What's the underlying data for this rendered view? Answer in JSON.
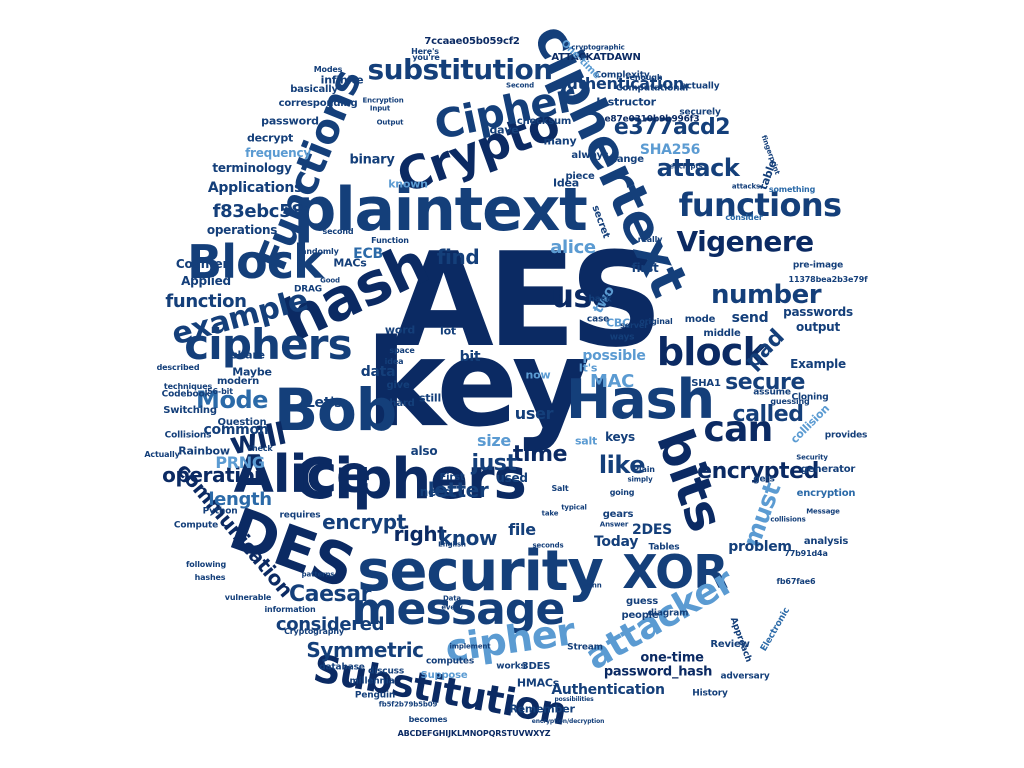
{
  "colors": {
    "navy": "#0b2a63",
    "dark": "#143f7a",
    "mid": "#2b6aa8",
    "light": "#5b9bd2",
    "pale": "#9cc3e6"
  },
  "words": [
    {
      "text": "AES",
      "size": 130
    },
    {
      "text": "key",
      "size": 120
    },
    {
      "text": "Ciphers",
      "size": 56
    },
    {
      "text": "security",
      "size": 56
    },
    {
      "text": "plaintext",
      "size": 60
    },
    {
      "text": "ciphertext",
      "size": 52
    },
    {
      "text": "hash",
      "size": 58
    },
    {
      "text": "Bob",
      "size": 58
    },
    {
      "text": "Alice",
      "size": 52
    },
    {
      "text": "DES",
      "size": 58
    },
    {
      "text": "Hash",
      "size": 54
    },
    {
      "text": "bits",
      "size": 50
    },
    {
      "text": "message",
      "size": 44
    },
    {
      "text": "Crypto",
      "size": 46
    },
    {
      "text": "Block",
      "size": 46
    },
    {
      "text": "Functions",
      "size": 40
    },
    {
      "text": "ciphers",
      "size": 42
    },
    {
      "text": "Cipher",
      "size": 40
    },
    {
      "text": "XOR",
      "size": 46
    },
    {
      "text": "Substitution",
      "size": 38
    },
    {
      "text": "cipher",
      "size": 38
    },
    {
      "text": "attacker",
      "size": 36
    },
    {
      "text": "block",
      "size": 38
    },
    {
      "text": "can",
      "size": 36
    },
    {
      "text": "functions",
      "size": 32
    },
    {
      "text": "use",
      "size": 32
    },
    {
      "text": "example",
      "size": 30
    },
    {
      "text": "Vigenere",
      "size": 28
    },
    {
      "text": "substitution",
      "size": 28
    },
    {
      "text": "number",
      "size": 26
    },
    {
      "text": "will",
      "size": 30
    },
    {
      "text": "secure",
      "size": 22
    },
    {
      "text": "e377acd2",
      "size": 22
    },
    {
      "text": "attack",
      "size": 24
    },
    {
      "text": "Mode",
      "size": 24
    },
    {
      "text": "called",
      "size": 22
    },
    {
      "text": "like",
      "size": 24
    },
    {
      "text": "communication",
      "size": 20
    },
    {
      "text": "encrypted",
      "size": 22
    },
    {
      "text": "Caesar",
      "size": 22
    },
    {
      "text": "operation",
      "size": 20
    },
    {
      "text": "Symmetric",
      "size": 20
    },
    {
      "text": "considered",
      "size": 18
    },
    {
      "text": "must",
      "size": 24
    },
    {
      "text": "pad",
      "size": 22
    },
    {
      "text": "time",
      "size": 22
    },
    {
      "text": "just",
      "size": 22
    },
    {
      "text": "right",
      "size": 20
    },
    {
      "text": "know",
      "size": 20
    },
    {
      "text": "letter",
      "size": 20
    },
    {
      "text": "encrypt",
      "size": 20
    },
    {
      "text": "length",
      "size": 18
    },
    {
      "text": "function",
      "size": 18
    },
    {
      "text": "f83ebc58",
      "size": 18
    },
    {
      "text": "alice",
      "size": 18
    },
    {
      "text": "find",
      "size": 20
    },
    {
      "text": "MAC",
      "size": 18
    },
    {
      "text": "PRNG",
      "size": 16
    },
    {
      "text": "authentication",
      "size": 16
    },
    {
      "text": "Authentication",
      "size": 14
    },
    {
      "text": "one-time",
      "size": 13
    },
    {
      "text": "password_hash",
      "size": 13
    },
    {
      "text": "Applications",
      "size": 14
    },
    {
      "text": "SHA256",
      "size": 14
    },
    {
      "text": "user",
      "size": 16
    },
    {
      "text": "2DES",
      "size": 14
    },
    {
      "text": "Today",
      "size": 14
    },
    {
      "text": "problem",
      "size": 14
    },
    {
      "text": "possible",
      "size": 14
    },
    {
      "text": "common",
      "size": 14
    },
    {
      "text": "file",
      "size": 16
    },
    {
      "text": "size",
      "size": 16
    },
    {
      "text": "data",
      "size": 14
    },
    {
      "text": "send",
      "size": 14
    },
    {
      "text": "Let's",
      "size": 14
    },
    {
      "text": "ECB",
      "size": 14
    },
    {
      "text": "bit",
      "size": 14
    },
    {
      "text": "binary",
      "size": 13
    },
    {
      "text": "passwords",
      "size": 12
    },
    {
      "text": "Example",
      "size": 12
    },
    {
      "text": "output",
      "size": 12
    },
    {
      "text": "operations",
      "size": 12
    },
    {
      "text": "Counter",
      "size": 12
    },
    {
      "text": "Applied",
      "size": 12
    },
    {
      "text": "terminology",
      "size": 12
    },
    {
      "text": "frequency",
      "size": 12
    },
    {
      "text": "decrypt",
      "size": 11
    },
    {
      "text": "password",
      "size": 11
    },
    {
      "text": "corresponding",
      "size": 10
    },
    {
      "text": "basically",
      "size": 10
    },
    {
      "text": "Instructor",
      "size": 11
    },
    {
      "text": "dave",
      "size": 11
    },
    {
      "text": "checksum",
      "size": 10
    },
    {
      "text": "many",
      "size": 11
    },
    {
      "text": "Idea",
      "size": 11
    },
    {
      "text": "known",
      "size": 11
    },
    {
      "text": "ATTACKATDAWN",
      "size": 10
    },
    {
      "text": "7ccaae05b059cf2",
      "size": 10
    },
    {
      "text": "Complexity",
      "size": 9
    },
    {
      "text": "Computational",
      "size": 9
    },
    {
      "text": "e87e0310b9b996f3",
      "size": 9
    },
    {
      "text": "Modes",
      "size": 8
    },
    {
      "text": "infinite",
      "size": 11
    },
    {
      "text": "share",
      "size": 11
    },
    {
      "text": "Maybe",
      "size": 11
    },
    {
      "text": "modern",
      "size": 10
    },
    {
      "text": "MACs",
      "size": 11
    },
    {
      "text": "DRAG",
      "size": 9
    },
    {
      "text": "Question",
      "size": 10
    },
    {
      "text": "Rainbow",
      "size": 11
    },
    {
      "text": "Collisions",
      "size": 9
    },
    {
      "text": "Switching",
      "size": 10
    },
    {
      "text": "Codebook",
      "size": 9
    },
    {
      "text": "techniques",
      "size": 8
    },
    {
      "text": "Python",
      "size": 9
    },
    {
      "text": "Compute",
      "size": 9
    },
    {
      "text": "Actually",
      "size": 8
    },
    {
      "text": "requires",
      "size": 9
    },
    {
      "text": "following",
      "size": 8
    },
    {
      "text": "hashes",
      "size": 8
    },
    {
      "text": "information",
      "size": 8
    },
    {
      "text": "vulnerable",
      "size": 8
    },
    {
      "text": "Cryptography",
      "size": 8
    },
    {
      "text": "database",
      "size": 9
    },
    {
      "text": "discuss",
      "size": 9
    },
    {
      "text": "millennia",
      "size": 9
    },
    {
      "text": "Penguin",
      "size": 9
    },
    {
      "text": "becomes",
      "size": 8
    },
    {
      "text": "ABCDEFGHIJKLMNOPQRSTUVWXYZ",
      "size": 8
    },
    {
      "text": "fb5f2b79b5b09",
      "size": 7
    },
    {
      "text": "Suppose",
      "size": 10
    },
    {
      "text": "Remember",
      "size": 11
    },
    {
      "text": "HMACs",
      "size": 11
    },
    {
      "text": "computes",
      "size": 9
    },
    {
      "text": "works",
      "size": 9
    },
    {
      "text": "3DES",
      "size": 10
    },
    {
      "text": "Stream",
      "size": 9
    },
    {
      "text": "History",
      "size": 9
    },
    {
      "text": "adversary",
      "size": 9
    },
    {
      "text": "people",
      "size": 10
    },
    {
      "text": "guess",
      "size": 10
    },
    {
      "text": "diagram",
      "size": 9
    },
    {
      "text": "Approach",
      "size": 9
    },
    {
      "text": "Electronic",
      "size": 9
    },
    {
      "text": "analysis",
      "size": 10
    },
    {
      "text": "encryption",
      "size": 10
    },
    {
      "text": "generator",
      "size": 10
    },
    {
      "text": "provides",
      "size": 9
    },
    {
      "text": "collision",
      "size": 11
    },
    {
      "text": "Cloning",
      "size": 9
    },
    {
      "text": "SHA1",
      "size": 10
    },
    {
      "text": "middle",
      "size": 10
    },
    {
      "text": "mode",
      "size": 10
    },
    {
      "text": "pre-image",
      "size": 9
    },
    {
      "text": "11378bea2b3e79f",
      "size": 8
    },
    {
      "text": "77b91d4a",
      "size": 8
    },
    {
      "text": "fb67fae6",
      "size": 8
    },
    {
      "text": "keys",
      "size": 12
    },
    {
      "text": "salt",
      "size": 11
    },
    {
      "text": "gears",
      "size": 10
    },
    {
      "text": "Tables",
      "size": 9
    },
    {
      "text": "used",
      "size": 12
    },
    {
      "text": "need",
      "size": 12
    },
    {
      "text": "first",
      "size": 12
    },
    {
      "text": "First",
      "size": 10
    },
    {
      "text": "also",
      "size": 12
    },
    {
      "text": "now",
      "size": 11
    },
    {
      "text": "It's",
      "size": 11
    },
    {
      "text": "table",
      "size": 11
    },
    {
      "text": "two",
      "size": 14
    },
    {
      "text": "CBC",
      "size": 11
    },
    {
      "text": "lot",
      "size": 11
    },
    {
      "text": "still",
      "size": 11
    },
    {
      "text": "give",
      "size": 10
    },
    {
      "text": "hard",
      "size": 10
    },
    {
      "text": "word",
      "size": 11
    },
    {
      "text": "Review",
      "size": 10
    },
    {
      "text": "secret",
      "size": 10
    },
    {
      "text": "One-time",
      "size": 10
    },
    {
      "text": "always",
      "size": 10
    },
    {
      "text": "change",
      "size": 10
    },
    {
      "text": "piece",
      "size": 10
    },
    {
      "text": "actually",
      "size": 9
    },
    {
      "text": "securely",
      "size": 9
    },
    {
      "text": "enough",
      "size": 8
    },
    {
      "text": "Here's",
      "size": 8
    },
    {
      "text": "you're",
      "size": 8
    },
    {
      "text": "Encryption",
      "size": 7
    },
    {
      "text": "Second",
      "size": 7
    },
    {
      "text": "cryptographic",
      "size": 7
    },
    {
      "text": "fingerprint",
      "size": 7
    },
    {
      "text": "encrypts",
      "size": 7
    },
    {
      "text": "attacks",
      "size": 7
    },
    {
      "text": "something",
      "size": 8
    },
    {
      "text": "consider",
      "size": 8
    },
    {
      "text": "really",
      "size": 8
    },
    {
      "text": "Function",
      "size": 8
    },
    {
      "text": "second",
      "size": 8
    },
    {
      "text": "randomly",
      "size": 8
    },
    {
      "text": "Good",
      "size": 7
    },
    {
      "text": "Output",
      "size": 7
    },
    {
      "text": "Input",
      "size": 7
    },
    {
      "text": "ways",
      "size": 9
    },
    {
      "text": "server",
      "size": 8
    },
    {
      "text": "case",
      "size": 9
    },
    {
      "text": "back",
      "size": 9
    },
    {
      "text": "original",
      "size": 8
    },
    {
      "text": "space",
      "size": 8
    },
    {
      "text": "idea",
      "size": 8
    },
    {
      "text": "Salt",
      "size": 8
    },
    {
      "text": "Plain",
      "size": 8
    },
    {
      "text": "going",
      "size": 8
    },
    {
      "text": "gets",
      "size": 9
    },
    {
      "text": "assume",
      "size": 9
    },
    {
      "text": "guessing",
      "size": 8
    },
    {
      "text": "check",
      "size": 8
    },
    {
      "text": "described",
      "size": 8
    },
    {
      "text": "56-bit",
      "size": 8
    },
    {
      "text": "English",
      "size": 7
    },
    {
      "text": "typical",
      "size": 7
    },
    {
      "text": "Data",
      "size": 7
    },
    {
      "text": "every",
      "size": 7
    },
    {
      "text": "Venn",
      "size": 7
    },
    {
      "text": "seconds",
      "size": 7
    },
    {
      "text": "patterns",
      "size": 7
    },
    {
      "text": "implement",
      "size": 7
    },
    {
      "text": "take",
      "size": 7
    },
    {
      "text": "simply",
      "size": 7
    },
    {
      "text": "Answer",
      "size": 7
    },
    {
      "text": "Message",
      "size": 7
    },
    {
      "text": "Security",
      "size": 7
    },
    {
      "text": "collisions",
      "size": 7
    },
    {
      "text": "possibilities",
      "size": 6
    },
    {
      "text": "encryption/decryption",
      "size": 6
    }
  ]
}
